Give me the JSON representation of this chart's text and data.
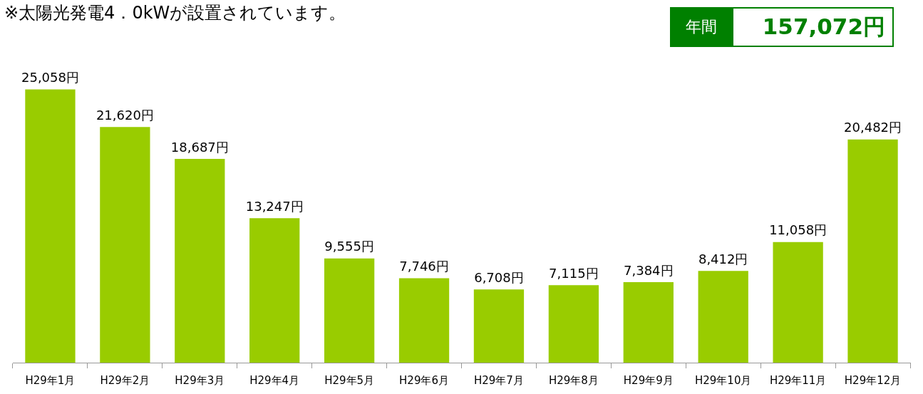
{
  "chart_data": {
    "type": "bar",
    "title": "※太陽光発電4．0kWが設置されています。",
    "annotations": [
      "年間",
      "157,072円"
    ],
    "categories": [
      "H29年1月",
      "H29年2月",
      "H29年3月",
      "H29年4月",
      "H29年5月",
      "H29年6月",
      "H29年7月",
      "H29年8月",
      "H29年9月",
      "H29年10月",
      "H29年11月",
      "H29年12月"
    ],
    "values": [
      25058,
      21620,
      18687,
      13247,
      9555,
      7746,
      6708,
      7115,
      7384,
      8412,
      11058,
      20482
    ],
    "value_labels": [
      "25,058円",
      "21,620円",
      "18,687円",
      "13,247円",
      "9,555円",
      "7,746円",
      "6,708円",
      "7,115円",
      "7,384円",
      "8,412円",
      "11,058円",
      "20,482円"
    ],
    "color": "#99cc00"
  }
}
